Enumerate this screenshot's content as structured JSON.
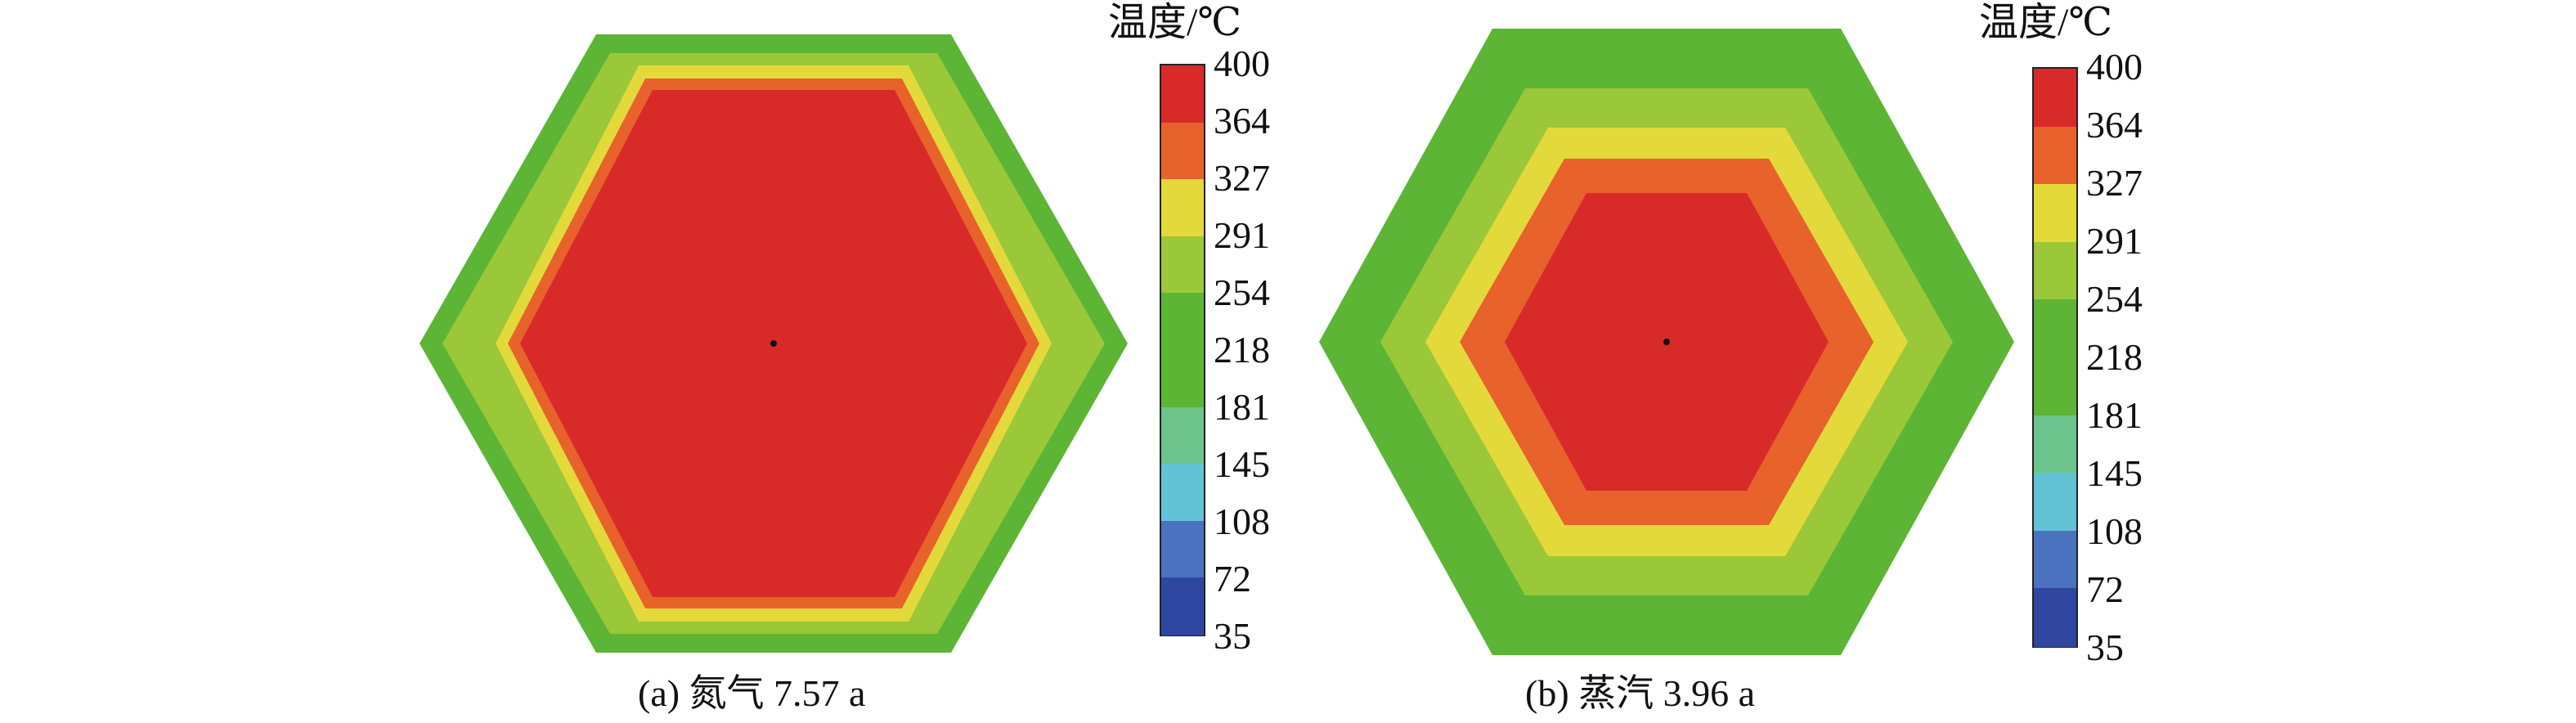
{
  "legend_title": "温度/℃",
  "colorbar": {
    "ticks": [
      "400",
      "364",
      "327",
      "291",
      "254",
      "218",
      "181",
      "145",
      "108",
      "72",
      "35"
    ],
    "band_colors": [
      "#d92a2a",
      "#e8622c",
      "#e4d93a",
      "#9ac838",
      "#5cb535",
      "#5cb535",
      "#6cc48c",
      "#63c3d6",
      "#4a72be",
      "#2e46a0"
    ]
  },
  "panels": [
    {
      "caption": "(a) 氮气 7.57 a",
      "zone_colors": [
        "#5cb535",
        "#9ac838",
        "#e4d93a",
        "#e8622c",
        "#d92a2a"
      ]
    },
    {
      "caption": "(b) 蒸汽 3.96 a",
      "zone_colors": [
        "#5cb535",
        "#9ac838",
        "#e4d93a",
        "#e8622c",
        "#d92a2a"
      ]
    }
  ]
}
